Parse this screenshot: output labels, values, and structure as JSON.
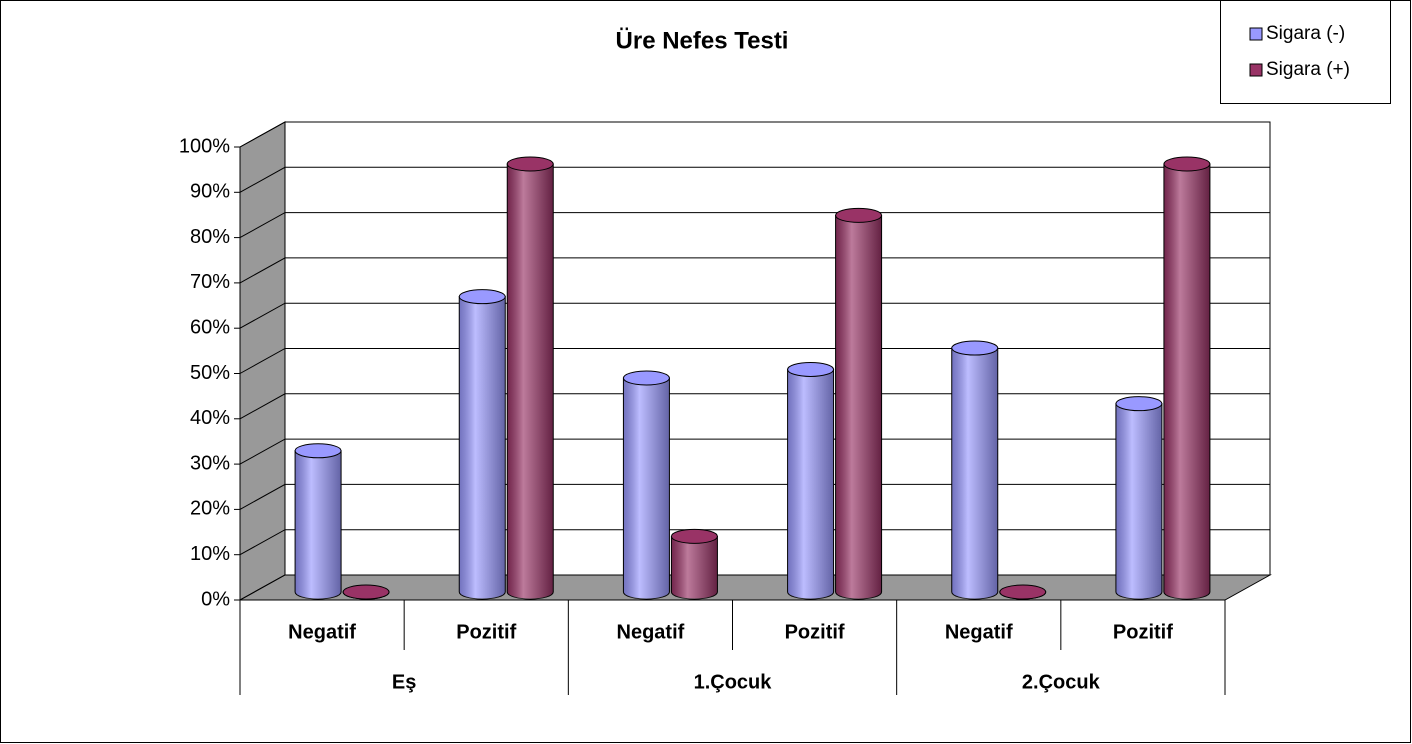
{
  "chart_data": {
    "type": "bar3d",
    "title": "Üre Nefes Testi",
    "categories": [
      "Negatif",
      "Pozitif",
      "Negatif",
      "Pozitif",
      "Negatif",
      "Pozitif"
    ],
    "groups": [
      "Eş",
      "1.Çocuk",
      "2.Çocuk"
    ],
    "series": [
      {
        "name": "Sigara (-)",
        "color": "#9999ff",
        "values": [
          33,
          69,
          50,
          52,
          57,
          44
        ]
      },
      {
        "name": "Sigara (+)",
        "color": "#993366",
        "values": [
          0,
          100,
          13,
          88,
          0,
          100
        ]
      }
    ],
    "ylim": [
      0,
      100
    ],
    "yticks": [
      {
        "value": 0,
        "label": "0%"
      },
      {
        "value": 10,
        "label": "10%"
      },
      {
        "value": 20,
        "label": "20%"
      },
      {
        "value": 30,
        "label": "30%"
      },
      {
        "value": 40,
        "label": "40%"
      },
      {
        "value": 50,
        "label": "50%"
      },
      {
        "value": 60,
        "label": "60%"
      },
      {
        "value": 70,
        "label": "70%"
      },
      {
        "value": 80,
        "label": "80%"
      },
      {
        "value": 90,
        "label": "90%"
      },
      {
        "value": 100,
        "label": "100%"
      }
    ],
    "grid": true,
    "legend": "top-right"
  }
}
